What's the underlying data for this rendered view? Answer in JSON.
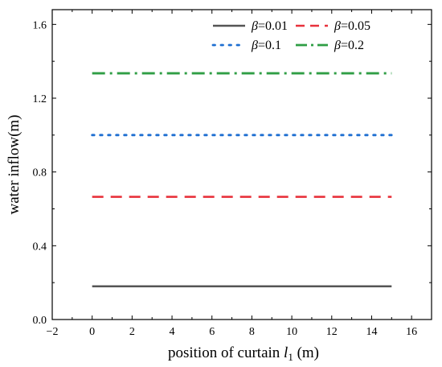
{
  "chart_data": {
    "type": "line",
    "xlabel": "position of curtain",
    "xlabel_symbol": "l",
    "xlabel_subscript": "1",
    "xlabel_unit": "(m)",
    "ylabel": "water inflow(m)",
    "xlim": [
      -2,
      17
    ],
    "ylim": [
      0,
      1.68
    ],
    "xticks": [
      -2,
      0,
      2,
      4,
      6,
      8,
      10,
      12,
      14,
      16
    ],
    "yticks": [
      0.0,
      0.4,
      0.8,
      1.2,
      1.6
    ],
    "ytick_labels": [
      "0.0",
      "0.4",
      "0.8",
      "1.2",
      "1.6"
    ],
    "grid": false,
    "legend_position": "top-right",
    "x": [
      0,
      15
    ],
    "series": [
      {
        "name": "β=0.01",
        "legend_symbol": "β",
        "legend_value": "=0.01",
        "values": [
          0.18,
          0.18
        ],
        "color": "#555555",
        "style": "solid"
      },
      {
        "name": "β=0.05",
        "legend_symbol": "β",
        "legend_value": "=0.05",
        "values": [
          0.665,
          0.665
        ],
        "color": "#e8323c",
        "style": "dashed"
      },
      {
        "name": "β=0.1",
        "legend_symbol": "β",
        "legend_value": "=0.1",
        "values": [
          1.0,
          1.0
        ],
        "color": "#1f6fd1",
        "style": "dotted"
      },
      {
        "name": "β=0.2",
        "legend_symbol": "β",
        "legend_value": "=0.2",
        "values": [
          1.335,
          1.335
        ],
        "color": "#2f9e44",
        "style": "dashdot"
      }
    ]
  }
}
